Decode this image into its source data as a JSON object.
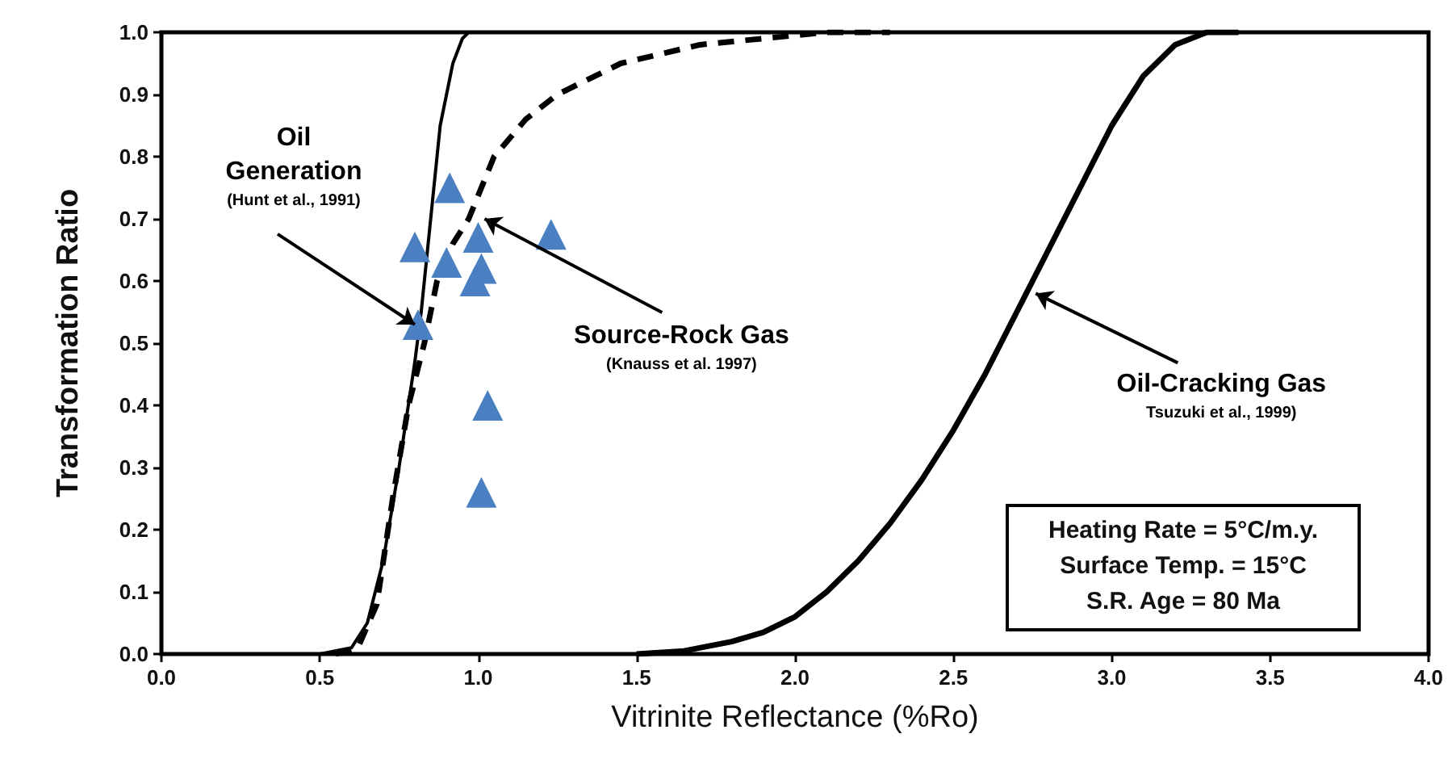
{
  "chart_data": {
    "type": "line",
    "xlabel": "Vitrinite Reflectance (%Ro)",
    "ylabel": "Transformation Ratio",
    "xlim": [
      0,
      4
    ],
    "ylim": [
      0,
      1
    ],
    "xticks": [
      {
        "value": 0,
        "label": "0.0"
      },
      {
        "value": 0.5,
        "label": "0.5"
      },
      {
        "value": 1,
        "label": "1.0"
      },
      {
        "value": 1.5,
        "label": "1.5"
      },
      {
        "value": 2,
        "label": "2.0"
      },
      {
        "value": 2.5,
        "label": "2.5"
      },
      {
        "value": 3,
        "label": "3.0"
      },
      {
        "value": 3.5,
        "label": "3.5"
      },
      {
        "value": 4,
        "label": "4.0"
      }
    ],
    "yticks": [
      {
        "value": 0,
        "label": "0.0"
      },
      {
        "value": 0.1,
        "label": "0.1"
      },
      {
        "value": 0.2,
        "label": "0.2"
      },
      {
        "value": 0.3,
        "label": "0.3"
      },
      {
        "value": 0.4,
        "label": "0.4"
      },
      {
        "value": 0.5,
        "label": "0.5"
      },
      {
        "value": 0.6,
        "label": "0.6"
      },
      {
        "value": 0.7,
        "label": "0.7"
      },
      {
        "value": 0.8,
        "label": "0.8"
      },
      {
        "value": 0.9,
        "label": "0.9"
      },
      {
        "value": 1,
        "label": "1.0"
      }
    ],
    "grid": false,
    "series": [
      {
        "color": "#000000",
        "line_style": "solid",
        "marker": "none",
        "x": [
          0.5,
          0.6,
          0.65,
          0.7,
          0.75,
          0.8,
          0.82,
          0.85,
          0.88,
          0.92,
          0.95,
          0.97,
          1.0
        ],
        "values": [
          0,
          0.01,
          0.05,
          0.15,
          0.3,
          0.47,
          0.55,
          0.7,
          0.85,
          0.95,
          0.99,
          1.0,
          1.0
        ]
      },
      {
        "color": "#000000",
        "line_style": "dashed",
        "marker": "none",
        "x": [
          0.55,
          0.62,
          0.68,
          0.73,
          0.78,
          0.83,
          0.87,
          0.92,
          0.97,
          1.05,
          1.15,
          1.25,
          1.45,
          1.7,
          1.9,
          2.1,
          2.3
        ],
        "values": [
          0,
          0.01,
          0.08,
          0.25,
          0.4,
          0.5,
          0.6,
          0.66,
          0.7,
          0.8,
          0.86,
          0.9,
          0.95,
          0.98,
          0.99,
          1.0,
          1.0
        ]
      },
      {
        "color": "#000000",
        "line_style": "solid",
        "marker": "none",
        "x": [
          1.5,
          1.65,
          1.8,
          1.9,
          2.0,
          2.1,
          2.2,
          2.3,
          2.4,
          2.5,
          2.6,
          2.7,
          2.8,
          2.9,
          3.0,
          3.1,
          3.2,
          3.3,
          3.4
        ],
        "values": [
          0,
          0.005,
          0.02,
          0.035,
          0.06,
          0.1,
          0.15,
          0.21,
          0.28,
          0.36,
          0.45,
          0.55,
          0.65,
          0.75,
          0.85,
          0.93,
          0.98,
          1.0,
          1.0
        ]
      },
      {
        "type": "scatter",
        "color": "#4a7fc1",
        "marker": "triangle",
        "x": [
          0.8,
          0.81,
          0.91,
          0.9,
          1.0,
          0.99,
          1.01,
          1.23,
          1.03,
          1.01
        ],
        "values": [
          0.655,
          0.53,
          0.75,
          0.63,
          0.67,
          0.6,
          0.62,
          0.675,
          0.4,
          0.26
        ]
      }
    ],
    "annotations": [
      {
        "text": "Oil\nGeneration\n(Hunt et al., 1991)",
        "x": 0.8,
        "y": 0.53
      },
      {
        "text": "Source-Rock Gas\n(Knauss et al. 1997)",
        "x": 1.02,
        "y": 0.7
      },
      {
        "text": "Oil-Cracking Gas\nTsuzuki et al., 1999)",
        "x": 2.76,
        "y": 0.58
      },
      "Heating Rate = 5°C/m.y.\nSurface Temp. = 15°C\nS.R. Age = 80 Ma"
    ]
  }
}
